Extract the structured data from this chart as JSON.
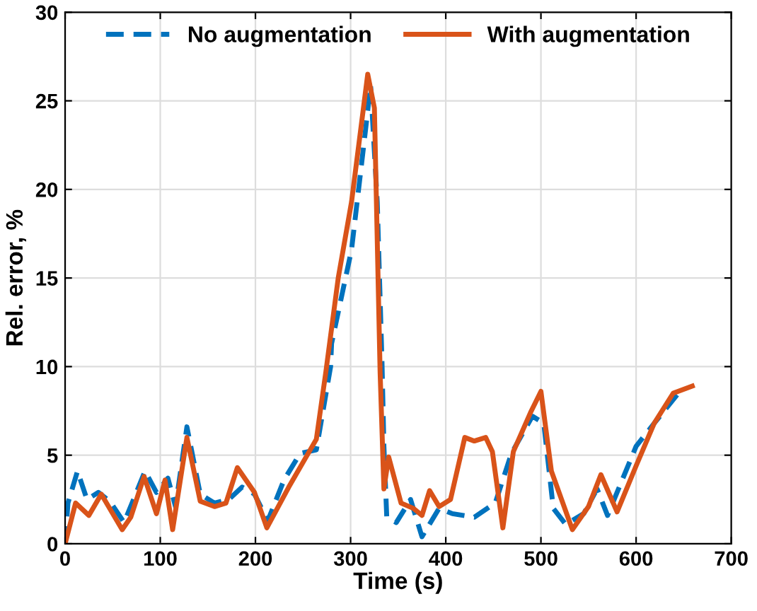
{
  "chart_data": {
    "type": "line",
    "xlabel": "Time (s)",
    "ylabel": "Rel. error, %",
    "xlim": [
      0,
      700
    ],
    "xticks": [
      0,
      100,
      200,
      300,
      400,
      500,
      600,
      700
    ],
    "ylim": [
      0,
      30
    ],
    "yticks": [
      0,
      5,
      10,
      15,
      20,
      25,
      30
    ],
    "grid": true,
    "legend": "top",
    "marker": "none",
    "series": [
      {
        "name": "No augmentation",
        "color": "#0072bd",
        "line_style": "dashed",
        "x": [
          0,
          3,
          13,
          23,
          35,
          47,
          62,
          84,
          96,
          108,
          116,
          128,
          142,
          157,
          172,
          186,
          199,
          213,
          230,
          247,
          264,
          279,
          280,
          301,
          316,
          321,
          328,
          333,
          335,
          338,
          348,
          363,
          375,
          393,
          407,
          430,
          452,
          469,
          491,
          503,
          513,
          526,
          545,
          559,
          570,
          600,
          619,
          646
        ],
        "values": [
          0,
          2.3,
          4.1,
          2.5,
          2.9,
          2.4,
          1.2,
          4.1,
          2.9,
          3.7,
          2.1,
          6.6,
          2.8,
          2.3,
          2.5,
          3.2,
          2.8,
          1.3,
          3.6,
          5.1,
          5.3,
          10.0,
          11.3,
          16.6,
          23.5,
          25.9,
          19.3,
          10.2,
          5.5,
          1.5,
          1.2,
          2.5,
          0.4,
          2.0,
          1.7,
          1.5,
          2.3,
          5.1,
          7.2,
          6.8,
          2.0,
          1.1,
          1.7,
          3.1,
          1.6,
          5.5,
          6.8,
          8.6
        ]
      },
      {
        "name": "With augmentation",
        "color": "#d95319",
        "line_style": "solid",
        "x": [
          0,
          11,
          25,
          38,
          60,
          69,
          83,
          96,
          105,
          113,
          128,
          142,
          157,
          169,
          181,
          199,
          212,
          235,
          264,
          274,
          287,
          301,
          318,
          325,
          331,
          335,
          340,
          353,
          366,
          375,
          383,
          393,
          405,
          420,
          430,
          442,
          449,
          460,
          471,
          489,
          500,
          511,
          533,
          550,
          563,
          580,
          600,
          619,
          639,
          659
        ],
        "values": [
          0,
          2.3,
          1.6,
          2.8,
          0.8,
          1.5,
          3.8,
          1.7,
          3.6,
          0.8,
          6.0,
          2.4,
          2.1,
          2.3,
          4.3,
          2.9,
          0.9,
          3.2,
          5.9,
          9.7,
          15.0,
          19.3,
          26.5,
          24.6,
          9.7,
          3.1,
          4.9,
          2.3,
          2.0,
          1.6,
          3.0,
          2.1,
          2.5,
          6.0,
          5.8,
          6.0,
          5.2,
          0.9,
          5.2,
          7.4,
          8.6,
          4.1,
          0.8,
          2.1,
          3.9,
          1.8,
          4.4,
          6.8,
          8.5,
          8.9
        ]
      }
    ]
  }
}
